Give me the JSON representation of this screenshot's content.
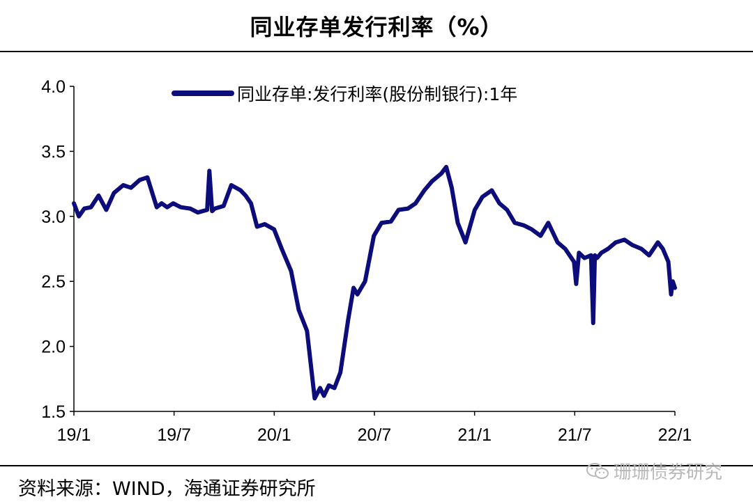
{
  "header": {
    "title": "同业存单发行利率（%）"
  },
  "footer": {
    "source": "资料来源：WIND，海通证券研究所",
    "watermark": "珊珊债券研究"
  },
  "chart_data": {
    "type": "line",
    "title": "同业存单发行利率（%）",
    "xlabel": "",
    "ylabel": "",
    "ylim": [
      1.5,
      4.0
    ],
    "yticks": [
      "4.0",
      "3.5",
      "3.0",
      "2.5",
      "2.0",
      "1.5"
    ],
    "xticks": [
      "19/1",
      "19/7",
      "20/1",
      "20/7",
      "21/1",
      "21/7",
      "22/1"
    ],
    "legend_position": "top",
    "grid": false,
    "series": [
      {
        "name": "同业存单:发行利率(股份制银行):1年",
        "color": "#0c0c7a",
        "x": [
          "2019-01-01",
          "2019-01-10",
          "2019-01-20",
          "2019-02-01",
          "2019-02-15",
          "2019-03-01",
          "2019-03-15",
          "2019-04-01",
          "2019-04-15",
          "2019-05-01",
          "2019-05-15",
          "2019-06-01",
          "2019-06-10",
          "2019-06-20",
          "2019-07-01",
          "2019-07-15",
          "2019-08-01",
          "2019-08-15",
          "2019-09-01",
          "2019-09-05",
          "2019-09-10",
          "2019-09-15",
          "2019-10-01",
          "2019-10-15",
          "2019-11-01",
          "2019-11-10",
          "2019-11-20",
          "2019-12-01",
          "2019-12-15",
          "2020-01-01",
          "2020-01-15",
          "2020-02-01",
          "2020-02-15",
          "2020-03-01",
          "2020-03-15",
          "2020-03-25",
          "2020-04-01",
          "2020-04-10",
          "2020-04-20",
          "2020-05-01",
          "2020-05-15",
          "2020-05-25",
          "2020-06-01",
          "2020-06-15",
          "2020-07-01",
          "2020-07-15",
          "2020-08-01",
          "2020-08-15",
          "2020-09-01",
          "2020-09-15",
          "2020-10-01",
          "2020-10-15",
          "2020-11-01",
          "2020-11-10",
          "2020-11-20",
          "2020-12-01",
          "2020-12-15",
          "2021-01-01",
          "2021-01-15",
          "2021-02-01",
          "2021-02-15",
          "2021-03-01",
          "2021-03-15",
          "2021-04-01",
          "2021-04-15",
          "2021-05-01",
          "2021-05-15",
          "2021-06-01",
          "2021-06-15",
          "2021-07-01",
          "2021-07-05",
          "2021-07-10",
          "2021-07-20",
          "2021-08-01",
          "2021-08-05",
          "2021-08-08",
          "2021-08-12",
          "2021-08-20",
          "2021-09-01",
          "2021-09-15",
          "2021-10-01",
          "2021-10-15",
          "2021-11-01",
          "2021-11-15",
          "2021-12-01",
          "2021-12-10",
          "2021-12-20",
          "2021-12-25",
          "2021-12-28",
          "2022-01-01"
        ],
        "values": [
          3.1,
          3.0,
          3.06,
          3.07,
          3.16,
          3.05,
          3.18,
          3.24,
          3.22,
          3.28,
          3.3,
          3.07,
          3.1,
          3.07,
          3.1,
          3.07,
          3.06,
          3.03,
          3.05,
          3.35,
          3.04,
          3.06,
          3.08,
          3.24,
          3.2,
          3.16,
          3.1,
          2.92,
          2.94,
          2.9,
          2.75,
          2.58,
          2.28,
          2.12,
          1.6,
          1.68,
          1.62,
          1.7,
          1.68,
          1.8,
          2.2,
          2.45,
          2.4,
          2.5,
          2.85,
          2.95,
          2.96,
          3.05,
          3.06,
          3.1,
          3.2,
          3.27,
          3.33,
          3.38,
          3.22,
          2.95,
          2.8,
          3.05,
          3.15,
          3.2,
          3.1,
          3.05,
          2.95,
          2.93,
          2.9,
          2.85,
          2.95,
          2.8,
          2.75,
          2.65,
          2.48,
          2.72,
          2.68,
          2.7,
          2.18,
          2.7,
          2.68,
          2.72,
          2.75,
          2.8,
          2.82,
          2.78,
          2.75,
          2.7,
          2.8,
          2.75,
          2.65,
          2.4,
          2.5,
          2.45
        ]
      }
    ]
  }
}
